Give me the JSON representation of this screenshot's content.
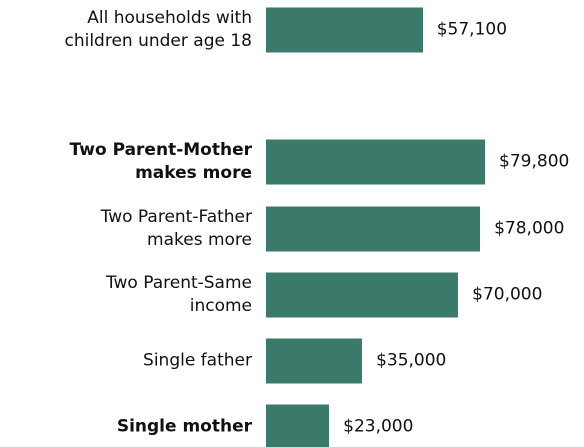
{
  "chart_data": {
    "type": "bar",
    "orientation": "horizontal",
    "categories": [
      "All households with\nchildren under age 18",
      "Two Parent-Mother\nmakes more",
      "Two Parent-Father\nmakes more",
      "Two Parent-Same\nincome",
      "Single father",
      "Single mother"
    ],
    "values": [
      57100,
      79800,
      78000,
      70000,
      35000,
      23000
    ],
    "value_labels": [
      "$57,100",
      "$79,800",
      "$78,000",
      "$70,000",
      "$35,000",
      "$23,000"
    ],
    "bold": [
      false,
      true,
      false,
      false,
      false,
      true
    ],
    "color": "#3b7a6a"
  }
}
